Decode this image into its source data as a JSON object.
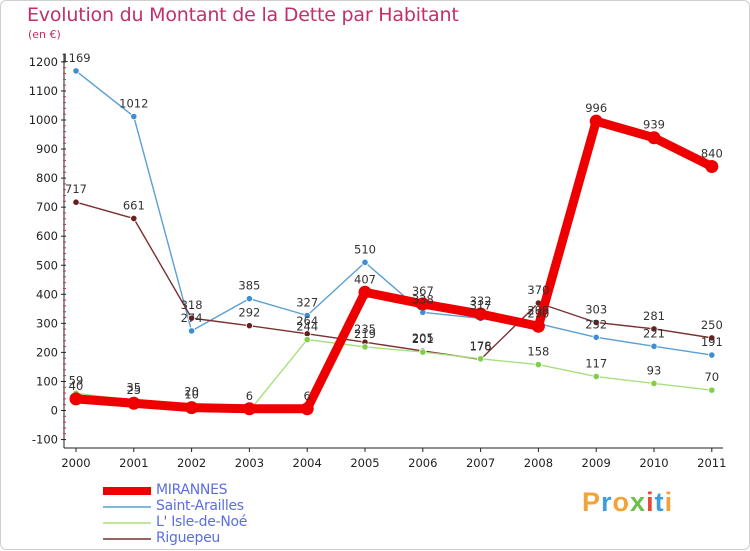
{
  "title": "Evolution du Montant de la Dette par Habitant",
  "unit_label": "(en €)",
  "colors": {
    "title": "#c0306a",
    "axis": "#222222",
    "grid_tick": "#cc3344",
    "value_label": "#333333"
  },
  "brand": {
    "text": "Proxiti",
    "colors": [
      "#f2a33a",
      "#3fa0d8",
      "#f2a33a",
      "#6cc04a",
      "#e8483b",
      "#3fa0d8",
      "#f2a33a"
    ]
  },
  "chart_data": {
    "type": "line",
    "title": "Evolution du Montant de la Dette par Habitant",
    "ylabel": "(en €)",
    "xlabel": "",
    "categories": [
      "2000",
      "2001",
      "2002",
      "2003",
      "2004",
      "2005",
      "2006",
      "2007",
      "2008",
      "2009",
      "2010",
      "2011"
    ],
    "ylim": [
      -100,
      1200
    ],
    "yticks": [
      -100,
      0,
      100,
      200,
      300,
      400,
      500,
      600,
      700,
      800,
      900,
      1000,
      1100,
      1200
    ],
    "grid": false,
    "legend_position": "bottom-left",
    "series": [
      {
        "name": "MIRANNES",
        "color": "#ee0000",
        "marker_fill": "#ee0000",
        "width": 9,
        "marker_r": 6.5,
        "values": [
          40,
          25,
          10,
          6,
          6,
          407,
          367,
          332,
          290,
          996,
          939,
          840
        ]
      },
      {
        "name": "Saint-Arailles",
        "color": "#5aa0d4",
        "marker_fill": "#3f8fd0",
        "width": 1.4,
        "marker_r": 3.2,
        "values": [
          1169,
          1012,
          274,
          385,
          327,
          510,
          338,
          317,
          299,
          252,
          221,
          191
        ]
      },
      {
        "name": "L' Isle-de-Noé",
        "color": "#a8e07e",
        "marker_fill": "#7fcf4a",
        "width": 1.4,
        "marker_r": 3.2,
        "values": [
          59,
          35,
          20,
          -1,
          244,
          219,
          201,
          178,
          158,
          117,
          93,
          70
        ]
      },
      {
        "name": "Riguepeu",
        "color": "#7a3030",
        "marker_fill": "#6a1f1f",
        "width": 1.4,
        "marker_r": 3.2,
        "values": [
          717,
          661,
          318,
          292,
          264,
          235,
          205,
          176,
          370,
          303,
          281,
          250
        ]
      }
    ],
    "data_labels": [
      {
        "series": 0,
        "index": 0,
        "text": "40"
      },
      {
        "series": 0,
        "index": 1,
        "text": "25"
      },
      {
        "series": 0,
        "index": 2,
        "text": "10"
      },
      {
        "series": 0,
        "index": 3,
        "text": "6"
      },
      {
        "series": 0,
        "index": 4,
        "text": "6"
      },
      {
        "series": 0,
        "index": 5,
        "text": "407"
      },
      {
        "series": 0,
        "index": 6,
        "text": "367"
      },
      {
        "series": 0,
        "index": 7,
        "text": "332"
      },
      {
        "series": 0,
        "index": 8,
        "text": "290"
      },
      {
        "series": 0,
        "index": 9,
        "text": "996"
      },
      {
        "series": 0,
        "index": 10,
        "text": "939"
      },
      {
        "series": 0,
        "index": 11,
        "text": "840"
      },
      {
        "series": 1,
        "index": 0,
        "text": "1169"
      },
      {
        "series": 1,
        "index": 1,
        "text": "1012"
      },
      {
        "series": 1,
        "index": 2,
        "text": "274"
      },
      {
        "series": 1,
        "index": 3,
        "text": "385"
      },
      {
        "series": 1,
        "index": 4,
        "text": "327"
      },
      {
        "series": 1,
        "index": 5,
        "text": "510"
      },
      {
        "series": 1,
        "index": 6,
        "text": "338"
      },
      {
        "series": 1,
        "index": 7,
        "text": "317"
      },
      {
        "series": 1,
        "index": 8,
        "text": "299"
      },
      {
        "series": 1,
        "index": 9,
        "text": "252"
      },
      {
        "series": 1,
        "index": 10,
        "text": "221"
      },
      {
        "series": 1,
        "index": 11,
        "text": "191"
      },
      {
        "series": 2,
        "index": 0,
        "text": "59"
      },
      {
        "series": 2,
        "index": 1,
        "text": "35"
      },
      {
        "series": 2,
        "index": 2,
        "text": "20"
      },
      {
        "series": 2,
        "index": 4,
        "text": "244"
      },
      {
        "series": 2,
        "index": 5,
        "text": "219"
      },
      {
        "series": 2,
        "index": 6,
        "text": "201"
      },
      {
        "series": 2,
        "index": 7,
        "text": "178"
      },
      {
        "series": 2,
        "index": 8,
        "text": "158"
      },
      {
        "series": 2,
        "index": 9,
        "text": "117"
      },
      {
        "series": 2,
        "index": 10,
        "text": "93"
      },
      {
        "series": 2,
        "index": 11,
        "text": "70"
      },
      {
        "series": 3,
        "index": 0,
        "text": "717"
      },
      {
        "series": 3,
        "index": 1,
        "text": "661"
      },
      {
        "series": 3,
        "index": 2,
        "text": "318"
      },
      {
        "series": 3,
        "index": 3,
        "text": "292"
      },
      {
        "series": 3,
        "index": 4,
        "text": "264"
      },
      {
        "series": 3,
        "index": 5,
        "text": "235"
      },
      {
        "series": 3,
        "index": 6,
        "text": "205"
      },
      {
        "series": 3,
        "index": 7,
        "text": "176"
      },
      {
        "series": 3,
        "index": 8,
        "text": "370"
      },
      {
        "series": 3,
        "index": 9,
        "text": "303"
      },
      {
        "series": 3,
        "index": 10,
        "text": "281"
      },
      {
        "series": 3,
        "index": 11,
        "text": "250"
      }
    ]
  }
}
